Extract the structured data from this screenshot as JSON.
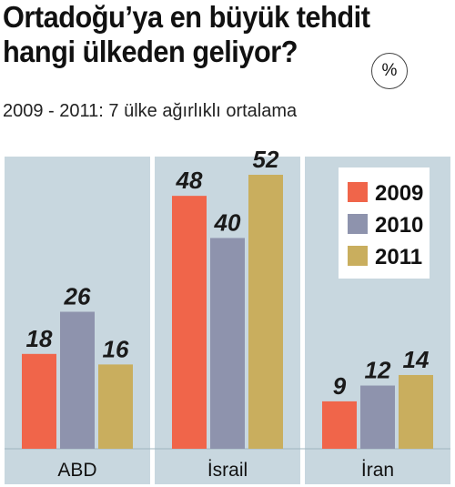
{
  "title": {
    "line1": "Ortadoğu’ya en büyük tehdit",
    "line2": "hangi ülkeden geliyor?"
  },
  "unit": "%",
  "subtitle": "2009 - 2011: 7 ülke ağırlıklı ortalama",
  "colors": {
    "2009": "#f0654a",
    "2010": "#8e93ad",
    "2011": "#c9ae5e",
    "panel": "#c8d7df",
    "panel_border": "#ffffff"
  },
  "chart_data": {
    "type": "bar",
    "categories": [
      "ABD",
      "İsrail",
      "İran"
    ],
    "series": [
      {
        "name": "2009",
        "values": [
          18,
          48,
          9
        ]
      },
      {
        "name": "2010",
        "values": [
          26,
          40,
          12
        ]
      },
      {
        "name": "2011",
        "values": [
          16,
          52,
          14
        ]
      }
    ],
    "ylim": [
      0,
      60
    ],
    "grid": false,
    "legend": "top-right",
    "show_data_labels": true
  }
}
